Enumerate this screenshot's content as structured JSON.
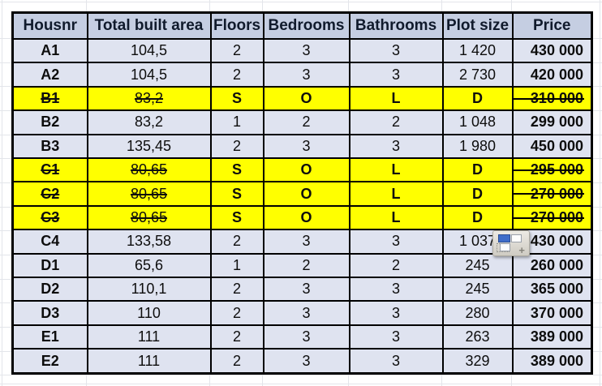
{
  "table": {
    "columns": [
      "Housnr",
      "Total built area",
      "Floors",
      "Bedrooms",
      "Bathrooms",
      "Plot size",
      "Price"
    ],
    "rows": [
      {
        "housnr": "A1",
        "area": "104,5",
        "floors": "2",
        "bedrooms": "3",
        "bathrooms": "3",
        "plot": "1 420",
        "price": "430 000",
        "sold": false
      },
      {
        "housnr": "A2",
        "area": "104,5",
        "floors": "2",
        "bedrooms": "3",
        "bathrooms": "3",
        "plot": "2 730",
        "price": "420 000",
        "sold": false
      },
      {
        "housnr": "B1",
        "area": "83,2",
        "floors": "S",
        "bedrooms": "O",
        "bathrooms": "L",
        "plot": "D",
        "price": "310 000",
        "sold": true
      },
      {
        "housnr": "B2",
        "area": "83,2",
        "floors": "1",
        "bedrooms": "2",
        "bathrooms": "2",
        "plot": "1 048",
        "price": "299 000",
        "sold": false
      },
      {
        "housnr": "B3",
        "area": "135,45",
        "floors": "2",
        "bedrooms": "3",
        "bathrooms": "3",
        "plot": "1 980",
        "price": "450 000",
        "sold": false
      },
      {
        "housnr": "C1",
        "area": "80,65",
        "floors": "S",
        "bedrooms": "O",
        "bathrooms": "L",
        "plot": "D",
        "price": "295 000",
        "sold": true
      },
      {
        "housnr": "C2",
        "area": "80,65",
        "floors": "S",
        "bedrooms": "O",
        "bathrooms": "L",
        "plot": "D",
        "price": "270 000",
        "sold": true
      },
      {
        "housnr": "C3",
        "area": "80,65",
        "floors": "S",
        "bedrooms": "O",
        "bathrooms": "L",
        "plot": "D",
        "price": "270 000",
        "sold": true
      },
      {
        "housnr": "C4",
        "area": "133,58",
        "floors": "2",
        "bedrooms": "3",
        "bathrooms": "3",
        "plot": "1 037",
        "price": "430 000",
        "sold": false
      },
      {
        "housnr": "D1",
        "area": "65,6",
        "floors": "1",
        "bedrooms": "2",
        "bathrooms": "2",
        "plot": "245",
        "price": "260 000",
        "sold": false
      },
      {
        "housnr": "D2",
        "area": "110,1",
        "floors": "2",
        "bedrooms": "3",
        "bathrooms": "3",
        "plot": "245",
        "price": "365 000",
        "sold": false
      },
      {
        "housnr": "D3",
        "area": "110",
        "floors": "2",
        "bedrooms": "3",
        "bathrooms": "3",
        "plot": "280",
        "price": "370 000",
        "sold": false
      },
      {
        "housnr": "E1",
        "area": "111",
        "floors": "2",
        "bedrooms": "3",
        "bathrooms": "3",
        "plot": "263",
        "price": "389 000",
        "sold": false
      },
      {
        "housnr": "E2",
        "area": "111",
        "floors": "2",
        "bedrooms": "3",
        "bathrooms": "3",
        "plot": "329",
        "price": "389 000",
        "sold": false
      }
    ]
  },
  "paste_button": {
    "icon": "paste-options-icon",
    "plus_glyph": "+"
  },
  "colors": {
    "header_bg": "#c5cee2",
    "row_bg": "#dfe3f0",
    "sold_bg": "#ffff00",
    "border": "#000000",
    "header_text": "#101a2c",
    "paste_blue": "#3f6dc9"
  }
}
